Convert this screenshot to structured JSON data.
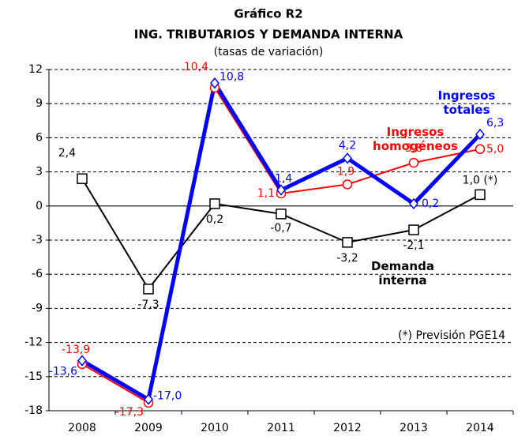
{
  "chart_data": {
    "type": "line",
    "title": "Gráfico R2",
    "subtitle": "ING. TRIBUTARIOS Y DEMANDA INTERNA",
    "note": "(tasas de variación)",
    "annotation": "(*) Previsión PGE14",
    "categories": [
      "2008",
      "2009",
      "2010",
      "2011",
      "2012",
      "2013",
      "2014"
    ],
    "ylim": [
      -18,
      12
    ],
    "yticks": [
      -18,
      -15,
      -12,
      -9,
      -6,
      -3,
      0,
      3,
      6,
      9,
      12
    ],
    "grid": true,
    "series": [
      {
        "name": "Demanda interna",
        "color": "#000000",
        "marker": "square",
        "values": [
          2.4,
          -7.3,
          0.2,
          -0.7,
          -3.2,
          -2.1,
          1.0
        ],
        "value_labels": [
          "2,4",
          "-7,3",
          "0,2",
          "-0,7",
          "-3,2",
          "-2,1",
          "1,0 (*)"
        ]
      },
      {
        "name": "Ingresos homogéneos",
        "color": "#ff0000",
        "marker": "circle",
        "values": [
          -13.9,
          -17.3,
          10.4,
          1.1,
          1.9,
          3.8,
          5.0
        ],
        "value_labels": [
          "-13,9",
          "-17,3",
          "10,4",
          "1,1",
          "1,9",
          "3,8",
          "5,0"
        ]
      },
      {
        "name": "Ingresos totales",
        "color": "#0000ff",
        "marker": "diamond",
        "values": [
          -13.6,
          -17.0,
          10.8,
          1.4,
          4.2,
          0.2,
          6.3
        ],
        "value_labels": [
          "-13,6",
          "-17,0",
          "10,8",
          "1,4",
          "4,2",
          "0,2",
          "6,3"
        ]
      }
    ]
  }
}
